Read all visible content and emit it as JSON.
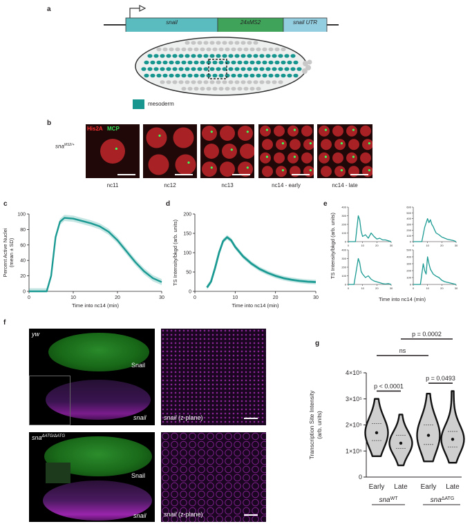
{
  "panels": {
    "a": "a",
    "b": "b",
    "c": "c",
    "d": "d",
    "e": "e",
    "f": "f",
    "g": "g"
  },
  "gene": {
    "seg1": "snail",
    "seg2": "24xMS2",
    "seg3": "snail UTR"
  },
  "legend": {
    "mesoderm": "mesoderm"
  },
  "panel_b": {
    "row_label": "sna",
    "row_label_sup": "MS2/+",
    "his_label": "His2A",
    "mcp_label": "MCP",
    "captions": [
      "nc11",
      "nc12",
      "nc13",
      "nc14 - early",
      "nc14 - late"
    ]
  },
  "panel_f": {
    "top_genotype": "yw",
    "bottom_genotype": "sna",
    "bottom_genotype_sup": "ΔATG/ΔATG",
    "protein_label": "Snail",
    "mrna_label": "snail",
    "zplane_label": "snail",
    "zplane_suffix": "(z-plane)"
  },
  "chart_data": [
    {
      "type": "line",
      "panel": "c",
      "xlabel": "Time into nc14 (min)",
      "ylabel": "Percent Active Nuclei",
      "ylabel2": "(mean ± SD)",
      "xlim": [
        0,
        30
      ],
      "ylim": [
        0,
        100
      ],
      "xticks": [
        0,
        10,
        20,
        30
      ],
      "yticks": [
        0,
        20,
        40,
        60,
        80,
        100
      ],
      "x": [
        0,
        4,
        5,
        6,
        7,
        8,
        10,
        12,
        14,
        16,
        18,
        20,
        22,
        24,
        26,
        28,
        30
      ],
      "y": [
        0,
        0,
        20,
        70,
        90,
        95,
        94,
        91,
        88,
        84,
        77,
        66,
        52,
        38,
        26,
        17,
        12
      ],
      "color": "#1a9a92"
    },
    {
      "type": "line",
      "panel": "d",
      "xlabel": "Time into nc14 (min)",
      "ylabel": "TS Intensity/bkgd (arb. units)",
      "xlim": [
        0,
        30
      ],
      "ylim": [
        0,
        200
      ],
      "xticks": [
        0,
        10,
        20,
        30
      ],
      "yticks": [
        0,
        50,
        100,
        150,
        200
      ],
      "x": [
        3,
        4,
        5,
        6,
        7,
        8,
        9,
        10,
        12,
        14,
        16,
        18,
        20,
        22,
        24,
        26,
        28,
        30
      ],
      "y": [
        10,
        25,
        60,
        100,
        130,
        140,
        132,
        115,
        90,
        72,
        58,
        48,
        40,
        34,
        30,
        27,
        25,
        24
      ],
      "color": "#1a9a92"
    },
    {
      "type": "line",
      "panel": "e",
      "xlabel": "Time into nc14 (min)",
      "ylabel": "TS Intensity/bkgd (arb. units)",
      "xticks": [
        0,
        10,
        20,
        30
      ],
      "subplots": [
        {
          "yticks": [
            0,
            100,
            200,
            300,
            400
          ],
          "ylim": [
            0,
            400
          ],
          "x": [
            0,
            5,
            6,
            7,
            8,
            9,
            10,
            12,
            14,
            16,
            18,
            20,
            22,
            24,
            26,
            28,
            30
          ],
          "y": [
            0,
            0,
            150,
            300,
            250,
            120,
            60,
            80,
            40,
            100,
            60,
            30,
            40,
            20,
            20,
            10,
            0
          ]
        },
        {
          "yticks": [
            0,
            100,
            200,
            300,
            400,
            500,
            600
          ],
          "ylim": [
            0,
            600
          ],
          "x": [
            0,
            6,
            8,
            10,
            11,
            12,
            13,
            14,
            15,
            16,
            18,
            20,
            22,
            24,
            26,
            28,
            30
          ],
          "y": [
            0,
            0,
            250,
            400,
            330,
            380,
            300,
            260,
            200,
            150,
            120,
            80,
            60,
            40,
            30,
            20,
            0
          ]
        },
        {
          "yticks": [
            0,
            100,
            200,
            300,
            400
          ],
          "ylim": [
            0,
            400
          ],
          "x": [
            0,
            4,
            5,
            6,
            7,
            8,
            9,
            10,
            12,
            14,
            16,
            18,
            20,
            22,
            24,
            26,
            28,
            30
          ],
          "y": [
            0,
            0,
            100,
            200,
            300,
            250,
            150,
            120,
            80,
            100,
            60,
            40,
            30,
            20,
            10,
            5,
            10,
            0
          ]
        },
        {
          "yticks": [
            0,
            100,
            200,
            300,
            400,
            500
          ],
          "ylim": [
            0,
            500
          ],
          "x": [
            0,
            5,
            6,
            7,
            8,
            9,
            10,
            11,
            12,
            14,
            16,
            18,
            20,
            22,
            24,
            26,
            28,
            30
          ],
          "y": [
            0,
            0,
            150,
            300,
            200,
            150,
            400,
            300,
            220,
            150,
            120,
            100,
            60,
            40,
            30,
            20,
            10,
            0
          ]
        }
      ],
      "color": "#1a9a92"
    },
    {
      "type": "violin",
      "panel": "g",
      "ylabel": "Transcription Site Intensity",
      "ylabel2": "(arb. units)",
      "yticks": [
        "0",
        "1×10⁵",
        "2×10⁵",
        "3×10⁵",
        "4×10⁵"
      ],
      "ylim": [
        0,
        400000
      ],
      "categories": [
        "Early",
        "Late",
        "Early",
        "Late"
      ],
      "groups": [
        {
          "label": "sna",
          "sup": "WT"
        },
        {
          "label": "sna",
          "sup": "ΔATG"
        }
      ],
      "medians": [
        170000,
        130000,
        160000,
        145000
      ],
      "q1": [
        140000,
        110000,
        125000,
        115000
      ],
      "q3": [
        205000,
        160000,
        200000,
        175000
      ],
      "mins": [
        80000,
        45000,
        60000,
        55000
      ],
      "maxs": [
        300000,
        240000,
        320000,
        330000
      ],
      "annotations": [
        "p < 0.0001",
        "p = 0.0493",
        "ns",
        "p = 0.0002"
      ]
    }
  ]
}
